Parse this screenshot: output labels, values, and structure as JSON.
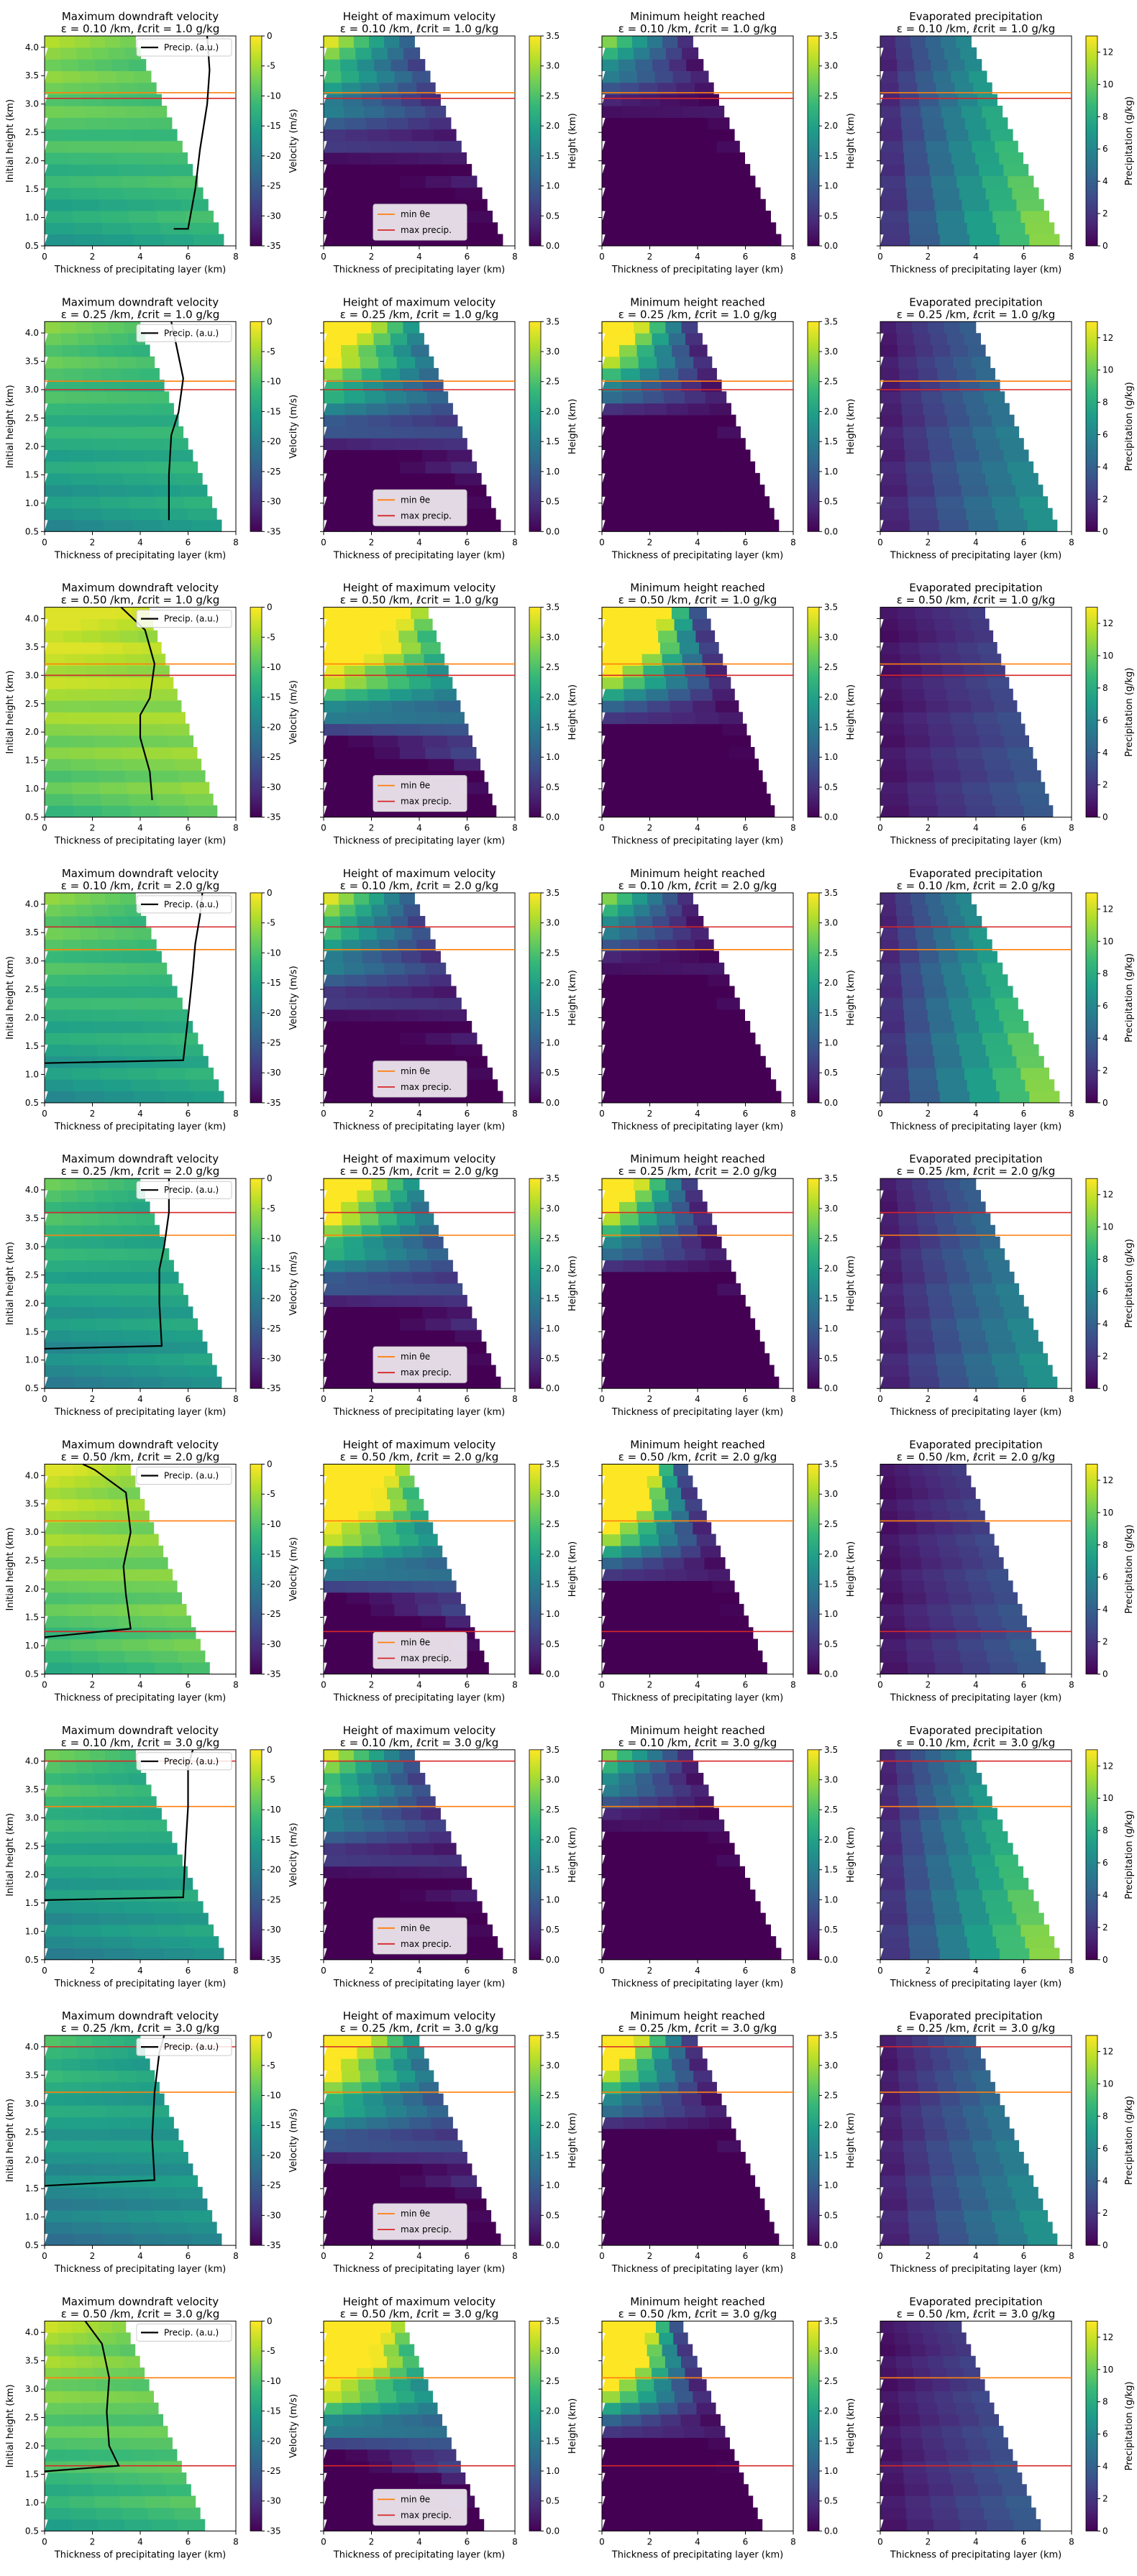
{
  "figure": {
    "background": "#ffffff",
    "colormap": "viridis",
    "colormap_stops": [
      "#440154",
      "#482878",
      "#3e4a89",
      "#31688e",
      "#26828e",
      "#1f9e89",
      "#35b779",
      "#6ece58",
      "#b5de2b",
      "#fde725"
    ]
  },
  "legend_labels": {
    "precip": "Precip. (a.u.)",
    "min_theta": "min θe",
    "max_precip": "max precip."
  },
  "line_colors": {
    "precip": "#000000",
    "min_theta": "#ff7f0e",
    "max_precip": "#d62728"
  },
  "chart_data": {
    "type": "heatmap",
    "x_label": "Thickness of precipitating layer (km)",
    "x_ticks": [
      0,
      2,
      4,
      6,
      8
    ],
    "xlim": [
      0,
      8
    ],
    "y_label": "Initial height (km)",
    "y_ticks": [
      0.5,
      1.0,
      1.5,
      2.0,
      2.5,
      3.0,
      3.5,
      4.0
    ],
    "ylim": [
      0.5,
      4.2
    ],
    "panel_titles": [
      "Maximum downdraft velocity",
      "Height of maximum velocity",
      "Minimum height reached",
      "Evaporated precipitation"
    ],
    "row_subtitles": [
      "ε = 0.10 /km, ℓcrit = 1.0 g/kg",
      "ε = 0.25 /km, ℓcrit = 1.0 g/kg",
      "ε = 0.50 /km, ℓcrit = 1.0 g/kg",
      "ε = 0.10 /km, ℓcrit = 2.0 g/kg",
      "ε = 0.25 /km, ℓcrit = 2.0 g/kg",
      "ε = 0.50 /km, ℓcrit = 2.0 g/kg",
      "ε = 0.10 /km, ℓcrit = 3.0 g/kg",
      "ε = 0.25 /km, ℓcrit = 3.0 g/kg",
      "ε = 0.50 /km, ℓcrit = 3.0 g/kg"
    ],
    "colorbars": [
      {
        "label": "Velocity (m/s)",
        "min": -35,
        "max": 0,
        "ticks": [
          0,
          -5,
          -10,
          -15,
          -20,
          -25,
          -30,
          -35
        ]
      },
      {
        "label": "Height (km)",
        "min": 0,
        "max": 3.5,
        "ticks": [
          0.0,
          0.5,
          1.0,
          1.5,
          2.0,
          2.5,
          3.0,
          3.5
        ]
      },
      {
        "label": "Height (km)",
        "min": 0,
        "max": 3.5,
        "ticks": [
          0.0,
          0.5,
          1.0,
          1.5,
          2.0,
          2.5,
          3.0,
          3.5
        ]
      },
      {
        "label": "Precipitation (g/kg)",
        "min": 0,
        "max": 13,
        "ticks": [
          0,
          2,
          4,
          6,
          8,
          10,
          12
        ]
      }
    ],
    "rows": [
      {
        "min_theta_e_height": 3.2,
        "max_precip_height": 3.1,
        "max_thickness_at_base": 7.6,
        "max_thickness_at_top": 3.7,
        "precip_curve": [
          [
            5.4,
            0.8
          ],
          [
            6.0,
            0.8
          ],
          [
            6.3,
            1.5
          ],
          [
            6.5,
            2.2
          ],
          [
            6.8,
            3.0
          ],
          [
            6.9,
            3.6
          ],
          [
            6.8,
            4.2
          ]
        ]
      },
      {
        "min_theta_e_height": 3.15,
        "max_precip_height": 3.0,
        "max_thickness_at_base": 7.5,
        "max_thickness_at_top": 3.9,
        "precip_curve": [
          [
            5.2,
            0.7
          ],
          [
            5.2,
            1.5
          ],
          [
            5.3,
            2.2
          ],
          [
            5.6,
            2.6
          ],
          [
            5.8,
            3.2
          ],
          [
            5.5,
            3.8
          ],
          [
            5.3,
            4.2
          ]
        ]
      },
      {
        "min_theta_e_height": 3.2,
        "max_precip_height": 3.0,
        "max_thickness_at_base": 7.3,
        "max_thickness_at_top": 4.3,
        "precip_curve": [
          [
            4.5,
            0.8
          ],
          [
            4.4,
            1.3
          ],
          [
            4.0,
            1.9
          ],
          [
            4.0,
            2.3
          ],
          [
            4.4,
            2.6
          ],
          [
            4.6,
            3.2
          ],
          [
            4.2,
            3.8
          ],
          [
            3.2,
            4.2
          ]
        ]
      },
      {
        "min_theta_e_height": 3.2,
        "max_precip_height": 3.6,
        "max_thickness_at_base": 7.6,
        "max_thickness_at_top": 3.7,
        "precip_curve": [
          [
            0.0,
            1.2
          ],
          [
            5.8,
            1.25
          ],
          [
            6.0,
            2.0
          ],
          [
            6.2,
            2.8
          ],
          [
            6.3,
            3.3
          ],
          [
            6.5,
            3.8
          ],
          [
            6.6,
            4.2
          ]
        ]
      },
      {
        "min_theta_e_height": 3.2,
        "max_precip_height": 3.6,
        "max_thickness_at_base": 7.5,
        "max_thickness_at_top": 3.9,
        "precip_curve": [
          [
            0.0,
            1.2
          ],
          [
            4.9,
            1.25
          ],
          [
            4.8,
            2.0
          ],
          [
            4.8,
            2.6
          ],
          [
            5.0,
            3.0
          ],
          [
            5.2,
            3.6
          ],
          [
            5.2,
            4.2
          ]
        ]
      },
      {
        "min_theta_e_height": 3.2,
        "max_precip_height": 1.25,
        "max_thickness_at_base": 7.0,
        "max_thickness_at_top": 3.5,
        "precip_curve": [
          [
            0.0,
            1.15
          ],
          [
            3.6,
            1.3
          ],
          [
            3.4,
            1.9
          ],
          [
            3.3,
            2.4
          ],
          [
            3.6,
            3.0
          ],
          [
            3.4,
            3.7
          ],
          [
            2.1,
            4.1
          ],
          [
            1.6,
            4.3
          ]
        ]
      },
      {
        "min_theta_e_height": 3.2,
        "max_precip_height": 4.0,
        "max_thickness_at_base": 7.6,
        "max_thickness_at_top": 3.7,
        "precip_curve": [
          [
            0.0,
            1.55
          ],
          [
            5.8,
            1.6
          ],
          [
            5.9,
            2.5
          ],
          [
            6.0,
            3.2
          ],
          [
            6.0,
            3.9
          ],
          [
            6.2,
            4.2
          ]
        ]
      },
      {
        "min_theta_e_height": 3.2,
        "max_precip_height": 4.0,
        "max_thickness_at_base": 7.5,
        "max_thickness_at_top": 3.9,
        "precip_curve": [
          [
            0.0,
            1.55
          ],
          [
            4.6,
            1.65
          ],
          [
            4.5,
            2.4
          ],
          [
            4.6,
            3.2
          ],
          [
            4.8,
            3.9
          ],
          [
            5.0,
            4.2
          ]
        ]
      },
      {
        "min_theta_e_height": 3.2,
        "max_precip_height": 1.65,
        "max_thickness_at_base": 6.8,
        "max_thickness_at_top": 3.3,
        "precip_curve": [
          [
            0.0,
            1.55
          ],
          [
            3.1,
            1.65
          ],
          [
            2.7,
            2.0
          ],
          [
            2.6,
            2.6
          ],
          [
            2.7,
            3.2
          ],
          [
            2.4,
            3.8
          ],
          [
            1.7,
            4.3
          ]
        ]
      }
    ]
  }
}
